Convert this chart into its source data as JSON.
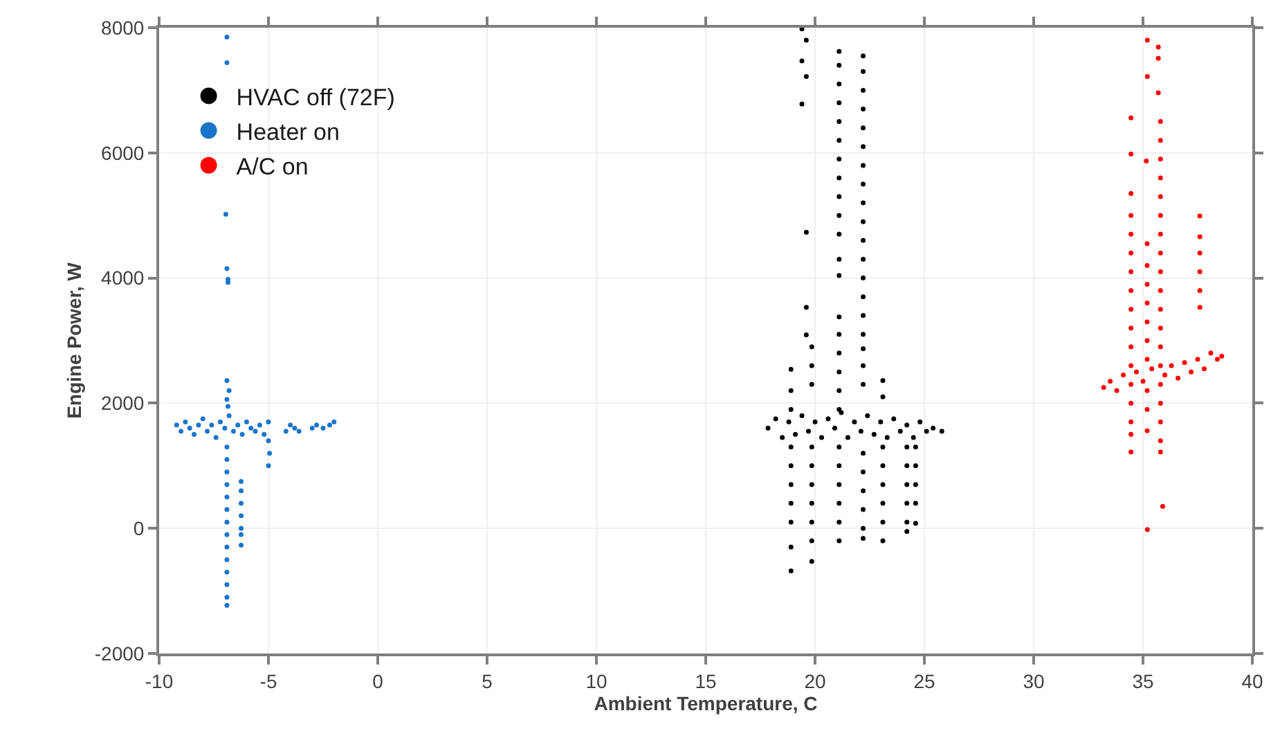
{
  "chart_data": {
    "type": "scatter",
    "xlabel": "Ambient Temperature, C",
    "ylabel": "Engine Power, W",
    "xlim": [
      -10,
      40
    ],
    "xticks": [
      -10,
      -5,
      0,
      5,
      10,
      15,
      20,
      25,
      30,
      35,
      40
    ],
    "ylim": [
      -2000,
      8000
    ],
    "yticks": [
      -2000,
      0,
      2000,
      4000,
      6000,
      8000
    ],
    "grid": true,
    "legend": "top left",
    "marker": "circle",
    "series": [
      {
        "name": "HVAC off (72F)",
        "color": "#000000",
        "x": [
          19.4,
          19.6,
          19.4,
          19.6,
          19.4,
          19.6,
          19.6,
          19.6,
          21.1,
          21.1,
          21.1,
          21.1,
          21.1,
          21.1,
          21.1,
          21.1,
          21.1,
          21.1,
          21.1,
          21.1,
          21.1,
          21.1,
          21.1,
          21.1,
          21.1,
          21.1,
          21.1,
          21.1,
          21.1,
          21.1,
          21.1,
          21.1,
          21.1,
          22.2,
          22.2,
          22.2,
          22.2,
          22.2,
          22.2,
          22.2,
          22.2,
          22.2,
          22.2,
          22.2,
          22.2,
          22.2,
          22.2,
          22.2,
          22.2,
          22.2,
          22.2,
          22.2,
          22.2,
          22.2,
          22.2,
          22.2,
          22.2,
          22.2,
          18.9,
          18.9,
          18.9,
          18.9,
          18.9,
          18.9,
          18.9,
          18.9,
          18.9,
          18.9,
          19.85,
          19.85,
          19.85,
          19.85,
          19.85,
          19.85,
          19.85,
          19.85,
          19.85,
          19.85,
          23.1,
          23.1,
          23.1,
          23.1,
          23.1,
          23.1,
          23.1,
          23.1,
          24.2,
          24.2,
          24.2,
          24.2,
          24.2,
          24.2,
          24.6,
          24.6,
          24.6,
          24.6,
          24.6,
          17.85,
          18.2,
          18.5,
          18.8,
          19.1,
          19.4,
          19.7,
          20.0,
          20.3,
          20.6,
          20.9,
          21.2,
          21.5,
          21.8,
          22.1,
          22.4,
          22.7,
          23.0,
          23.3,
          23.6,
          23.9,
          24.2,
          24.5,
          24.8,
          25.1,
          25.4,
          25.8
        ],
        "values": [
          7980,
          7800,
          7470,
          7220,
          6780,
          4730,
          3530,
          3090,
          7620,
          7400,
          7100,
          6800,
          6500,
          6200,
          5900,
          5600,
          5300,
          5000,
          4700,
          4300,
          4040,
          3380,
          3100,
          2800,
          2500,
          2200,
          1900,
          1300,
          1000,
          700,
          400,
          100,
          -200,
          7550,
          7300,
          7000,
          6700,
          6400,
          6100,
          5800,
          5500,
          5200,
          4900,
          4600,
          4300,
          4000,
          3700,
          3400,
          3100,
          2870,
          2600,
          2300,
          1200,
          900,
          600,
          300,
          0,
          -160,
          2540,
          2200,
          1900,
          1300,
          1000,
          700,
          400,
          100,
          -300,
          -680,
          2900,
          2600,
          2300,
          1300,
          1000,
          700,
          400,
          100,
          -200,
          -530,
          2360,
          2100,
          1300,
          1000,
          700,
          400,
          100,
          -200,
          1300,
          1000,
          700,
          400,
          100,
          -50,
          1300,
          1000,
          700,
          400,
          80,
          1600,
          1750,
          1450,
          1700,
          1500,
          1800,
          1550,
          1700,
          1450,
          1750,
          1600,
          1850,
          1450,
          1700,
          1550,
          1800,
          1500,
          1700,
          1450,
          1750,
          1550,
          1650,
          1450,
          1700,
          1550,
          1600,
          1550
        ]
      },
      {
        "name": "Heater on",
        "color": "#1a75c9",
        "x": [
          -6.9,
          -6.9,
          -6.95,
          -6.9,
          -6.85,
          -6.85,
          -6.9,
          -6.8,
          -6.9,
          -6.85,
          -9.2,
          -9.0,
          -8.8,
          -8.6,
          -8.4,
          -8.2,
          -8.0,
          -7.8,
          -7.6,
          -7.4,
          -7.2,
          -7.0,
          -6.8,
          -6.6,
          -6.4,
          -6.2,
          -6.0,
          -5.8,
          -5.6,
          -5.4,
          -5.2,
          -5.0,
          -5.0,
          -4.95,
          -5.0,
          -4.2,
          -4.0,
          -3.8,
          -3.6,
          -3.0,
          -2.8,
          -2.5,
          -2.2,
          -2.0,
          -6.9,
          -6.9,
          -6.9,
          -6.9,
          -6.9,
          -6.9,
          -6.9,
          -6.9,
          -6.9,
          -6.9,
          -6.9,
          -6.9,
          -6.9,
          -6.9,
          -6.25,
          -6.25,
          -6.25,
          -6.25,
          -6.25,
          -6.25,
          -6.25
        ],
        "values": [
          7850,
          7440,
          5020,
          4150,
          3930,
          3980,
          2360,
          2200,
          2060,
          1950,
          1650,
          1550,
          1700,
          1600,
          1500,
          1650,
          1750,
          1550,
          1650,
          1450,
          1700,
          1600,
          1800,
          1550,
          1650,
          1500,
          1700,
          1600,
          1550,
          1650,
          1500,
          1700,
          1400,
          1200,
          1000,
          1550,
          1650,
          1600,
          1550,
          1600,
          1650,
          1600,
          1650,
          1700,
          1300,
          1100,
          900,
          700,
          500,
          300,
          100,
          -100,
          -300,
          -500,
          -700,
          -900,
          -1100,
          -1230,
          750,
          600,
          400,
          200,
          0,
          -100,
          -270
        ]
      },
      {
        "name": "A/C on",
        "color": "#ff0000",
        "x": [
          35.2,
          35.7,
          35.7,
          35.2,
          35.7,
          34.45,
          34.45,
          35.15,
          35.2,
          35.9,
          34.45,
          34.45,
          34.45,
          34.45,
          34.45,
          34.45,
          34.45,
          34.45,
          34.45,
          34.45,
          34.45,
          34.45,
          34.45,
          34.45,
          34.45,
          35.19,
          35.19,
          35.19,
          35.19,
          35.19,
          35.19,
          35.19,
          35.19,
          35.19,
          35.19,
          35.8,
          35.8,
          35.8,
          35.8,
          35.8,
          35.8,
          35.8,
          35.8,
          35.8,
          35.8,
          35.8,
          35.8,
          35.8,
          35.8,
          35.8,
          35.8,
          35.8,
          35.8,
          35.8,
          37.6,
          37.6,
          37.6,
          37.6,
          37.6,
          37.6,
          33.2,
          33.5,
          33.8,
          34.1,
          34.7,
          35.0,
          35.4,
          36.0,
          36.3,
          36.6,
          36.9,
          37.2,
          37.5,
          37.8,
          38.1,
          38.4,
          38.6
        ],
        "values": [
          7800,
          7690,
          7510,
          7220,
          6960,
          6560,
          5980,
          5870,
          -20,
          350,
          5350,
          5000,
          4700,
          4400,
          4100,
          3800,
          3500,
          3200,
          2900,
          2600,
          2300,
          2000,
          1700,
          1500,
          1220,
          4550,
          4200,
          3900,
          3600,
          3300,
          3000,
          2700,
          2200,
          1900,
          1560,
          6500,
          6200,
          5900,
          5600,
          5300,
          5000,
          4700,
          4400,
          4100,
          3800,
          3500,
          3200,
          2900,
          2600,
          2300,
          2000,
          1700,
          1400,
          1220,
          4990,
          4660,
          4400,
          4100,
          3800,
          3530,
          2250,
          2350,
          2200,
          2450,
          2500,
          2350,
          2550,
          2450,
          2600,
          2400,
          2650,
          2500,
          2700,
          2550,
          2800,
          2700,
          2750
        ]
      }
    ]
  }
}
